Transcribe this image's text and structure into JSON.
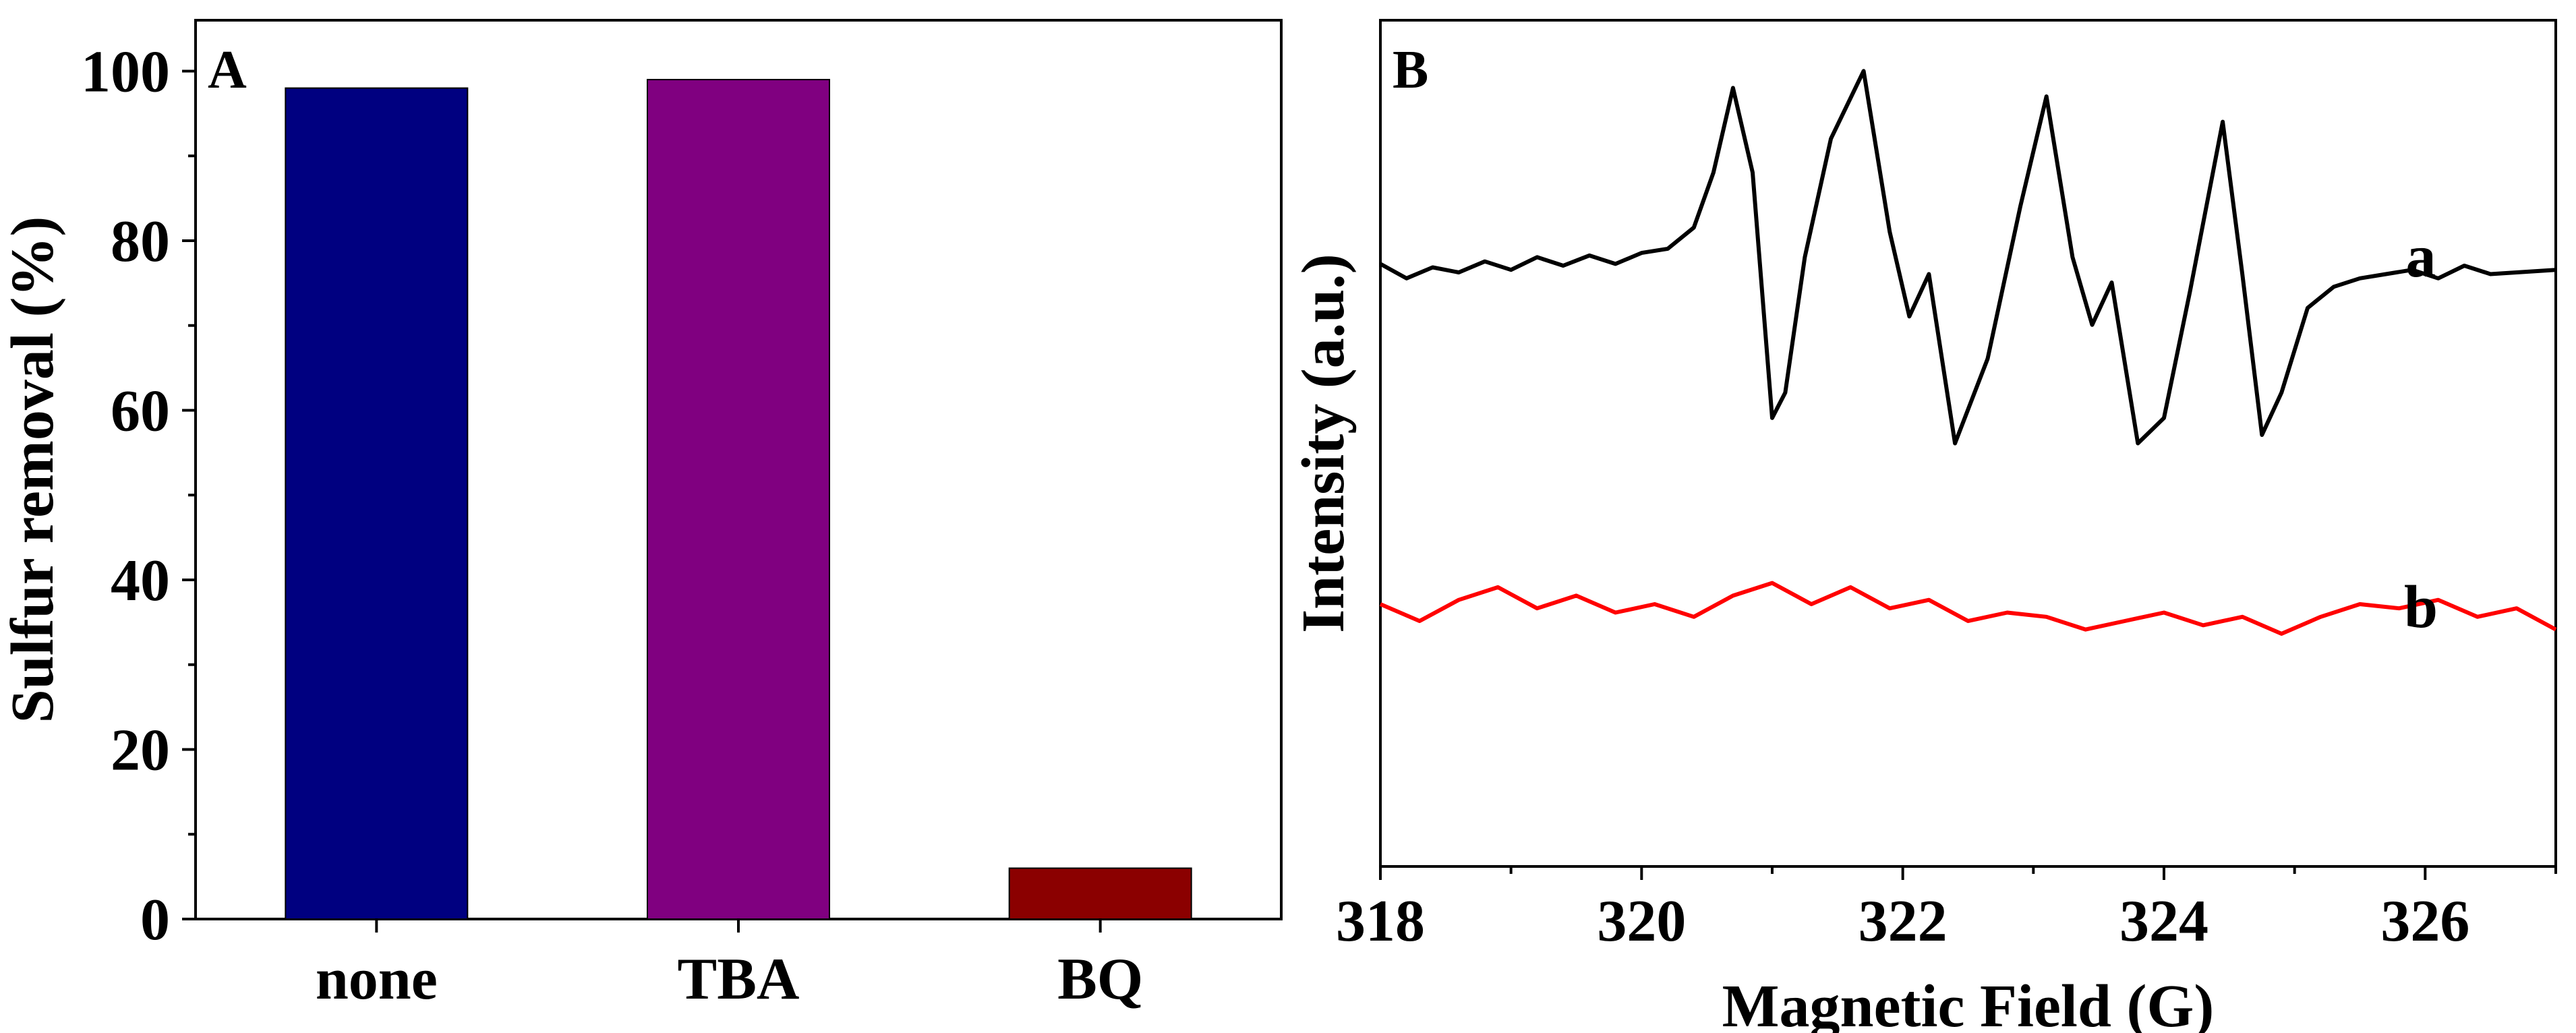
{
  "chart_data": [
    {
      "type": "bar",
      "panel_label": "A",
      "ylabel": "Sulfur removal (%)",
      "xlabel": "",
      "ylim": [
        0,
        106
      ],
      "yticks": [
        0,
        20,
        40,
        60,
        80,
        100
      ],
      "categories": [
        "none",
        "TBA",
        "BQ"
      ],
      "values": [
        98,
        99,
        6
      ],
      "colors": [
        "#000080",
        "#800080",
        "#8B0000"
      ]
    },
    {
      "type": "line",
      "panel_label": "B",
      "xlabel": "Magnetic Field (G)",
      "ylabel": "Intensity (a.u.)",
      "xlim": [
        318,
        327
      ],
      "xticks": [
        318,
        320,
        322,
        324,
        326
      ],
      "ylim": [
        0,
        10
      ],
      "series": [
        {
          "name": "a",
          "color": "#000000",
          "x": [
            318,
            318.2,
            318.4,
            318.6,
            318.8,
            319,
            319.2,
            319.4,
            319.6,
            319.8,
            320,
            320.2,
            320.4,
            320.55,
            320.7,
            320.85,
            321.0,
            321.1,
            321.25,
            321.45,
            321.7,
            321.9,
            322.05,
            322.2,
            322.4,
            322.65,
            322.9,
            323.1,
            323.3,
            323.45,
            323.6,
            323.8,
            324.0,
            324.2,
            324.45,
            324.6,
            324.75,
            324.9,
            325.1,
            325.3,
            325.5,
            325.7,
            325.9,
            326.1,
            326.3,
            326.5,
            326.7,
            327
          ],
          "y": [
            7.12,
            6.95,
            7.08,
            7.02,
            7.15,
            7.05,
            7.2,
            7.1,
            7.22,
            7.12,
            7.25,
            7.3,
            7.55,
            8.2,
            9.2,
            8.2,
            5.3,
            5.6,
            7.2,
            8.6,
            9.4,
            7.5,
            6.5,
            7.0,
            5.0,
            6.0,
            7.8,
            9.1,
            7.2,
            6.4,
            6.9,
            5.0,
            5.3,
            6.8,
            8.8,
            7.0,
            5.1,
            5.6,
            6.6,
            6.85,
            6.95,
            7.0,
            7.05,
            6.95,
            7.1,
            7.0,
            7.02,
            7.05
          ]
        },
        {
          "name": "b",
          "color": "#ff0000",
          "x": [
            318,
            318.3,
            318.6,
            318.9,
            319.2,
            319.5,
            319.8,
            320.1,
            320.4,
            320.7,
            321,
            321.3,
            321.6,
            321.9,
            322.2,
            322.5,
            322.8,
            323.1,
            323.4,
            323.7,
            324,
            324.3,
            324.6,
            324.9,
            325.2,
            325.5,
            325.8,
            326.1,
            326.4,
            326.7,
            327
          ],
          "y": [
            3.1,
            2.9,
            3.15,
            3.3,
            3.05,
            3.2,
            3.0,
            3.1,
            2.95,
            3.2,
            3.35,
            3.1,
            3.3,
            3.05,
            3.15,
            2.9,
            3.0,
            2.95,
            2.8,
            2.9,
            3.0,
            2.85,
            2.95,
            2.75,
            2.95,
            3.1,
            3.05,
            3.15,
            2.95,
            3.05,
            2.8
          ]
        }
      ]
    }
  ]
}
